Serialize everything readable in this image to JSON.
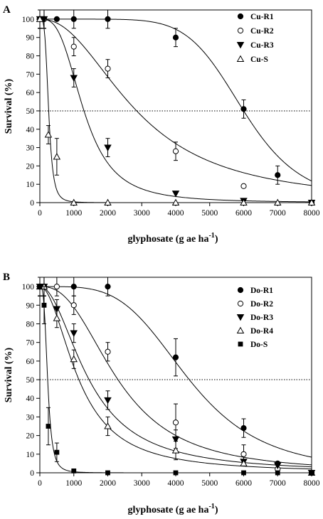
{
  "chart_data": [
    {
      "type": "scatter",
      "panel_label": "A",
      "xlabel": "glyphosate (g ae ha",
      "xlabel_sup": "-1",
      "ylabel": "Survival (%)",
      "xlim": [
        0,
        8000
      ],
      "ylim": [
        0,
        105
      ],
      "xticks": [
        "0",
        "1000",
        "2000",
        "3000",
        "4000",
        "5000",
        "6000",
        "7000",
        "8000"
      ],
      "yticks": [
        "0",
        "10",
        "20",
        "30",
        "40",
        "50",
        "60",
        "70",
        "80",
        "90",
        "100"
      ],
      "reference_line_y": 50,
      "legend_position": "top-right",
      "grid": false,
      "series": [
        {
          "name": "Cu-R1",
          "marker": "circle-filled",
          "ld50": 6000,
          "slope": 7,
          "points": [
            {
              "x": 0,
              "y": 100,
              "err": 5
            },
            {
              "x": 125,
              "y": 100,
              "err": 5
            },
            {
              "x": 500,
              "y": 100,
              "err": 0
            },
            {
              "x": 1000,
              "y": 100,
              "err": 5
            },
            {
              "x": 2000,
              "y": 100,
              "err": 5
            },
            {
              "x": 4000,
              "y": 90,
              "err": 5
            },
            {
              "x": 6000,
              "y": 51,
              "err": 5
            },
            {
              "x": 7000,
              "y": 15,
              "err": 5
            },
            {
              "x": 8000,
              "y": 0,
              "err": 0
            }
          ]
        },
        {
          "name": "Cu-R2",
          "marker": "circle-open",
          "ld50": 2850,
          "slope": 2.2,
          "points": [
            {
              "x": 0,
              "y": 100,
              "err": 5
            },
            {
              "x": 125,
              "y": 100,
              "err": 5
            },
            {
              "x": 1000,
              "y": 85,
              "err": 5
            },
            {
              "x": 2000,
              "y": 73,
              "err": 5
            },
            {
              "x": 4000,
              "y": 28,
              "err": 5
            },
            {
              "x": 6000,
              "y": 9,
              "err": 0
            },
            {
              "x": 8000,
              "y": 0,
              "err": 0
            }
          ]
        },
        {
          "name": "Cu-R3",
          "marker": "triangle-down-filled",
          "ld50": 1300,
          "slope": 3,
          "points": [
            {
              "x": 0,
              "y": 100,
              "err": 5
            },
            {
              "x": 125,
              "y": 100,
              "err": 5
            },
            {
              "x": 1000,
              "y": 68,
              "err": 5
            },
            {
              "x": 2000,
              "y": 30,
              "err": 5
            },
            {
              "x": 4000,
              "y": 5,
              "err": 0
            },
            {
              "x": 6000,
              "y": 1,
              "err": 0
            },
            {
              "x": 8000,
              "y": 0,
              "err": 0
            }
          ]
        },
        {
          "name": "Cu-S",
          "marker": "triangle-up-open",
          "ld50": 260,
          "slope": 4,
          "points": [
            {
              "x": 0,
              "y": 100,
              "err": 5
            },
            {
              "x": 250,
              "y": 37,
              "err": 5
            },
            {
              "x": 500,
              "y": 25,
              "err": 10
            },
            {
              "x": 1000,
              "y": 0,
              "err": 0
            },
            {
              "x": 2000,
              "y": 0,
              "err": 0
            },
            {
              "x": 4000,
              "y": 0,
              "err": 0
            },
            {
              "x": 6000,
              "y": 0,
              "err": 0
            },
            {
              "x": 7000,
              "y": 0,
              "err": 0
            },
            {
              "x": 8000,
              "y": 0,
              "err": 0
            }
          ]
        }
      ]
    },
    {
      "type": "scatter",
      "panel_label": "B",
      "xlabel": "glyphosate (g ae ha",
      "xlabel_sup": "-1",
      "ylabel": "Survival (%)",
      "xlim": [
        0,
        8000
      ],
      "ylim": [
        0,
        105
      ],
      "xticks": [
        "0",
        "1000",
        "2000",
        "3000",
        "4000",
        "5000",
        "6000",
        "7000",
        "8000"
      ],
      "yticks": [
        "0",
        "10",
        "20",
        "30",
        "40",
        "50",
        "60",
        "70",
        "80",
        "90",
        "100"
      ],
      "reference_line_y": 50,
      "legend_position": "top-right",
      "grid": false,
      "series": [
        {
          "name": "Do-R1",
          "marker": "circle-filled",
          "ld50": 4400,
          "slope": 4,
          "points": [
            {
              "x": 0,
              "y": 100,
              "err": 5
            },
            {
              "x": 125,
              "y": 100,
              "err": 5
            },
            {
              "x": 1000,
              "y": 100,
              "err": 5
            },
            {
              "x": 2000,
              "y": 100,
              "err": 5
            },
            {
              "x": 4000,
              "y": 62,
              "err": 10
            },
            {
              "x": 6000,
              "y": 24,
              "err": 5
            },
            {
              "x": 7000,
              "y": 5,
              "err": 0
            },
            {
              "x": 8000,
              "y": 0,
              "err": 0
            }
          ]
        },
        {
          "name": "Do-R2",
          "marker": "circle-open",
          "ld50": 2300,
          "slope": 2.5,
          "points": [
            {
              "x": 0,
              "y": 100,
              "err": 5
            },
            {
              "x": 125,
              "y": 100,
              "err": 5
            },
            {
              "x": 500,
              "y": 100,
              "err": 5
            },
            {
              "x": 1000,
              "y": 90,
              "err": 5
            },
            {
              "x": 2000,
              "y": 65,
              "err": 5
            },
            {
              "x": 4000,
              "y": 27,
              "err": 10
            },
            {
              "x": 6000,
              "y": 10,
              "err": 5
            },
            {
              "x": 7000,
              "y": 2,
              "err": 0
            },
            {
              "x": 8000,
              "y": 0,
              "err": 0
            }
          ]
        },
        {
          "name": "Do-R3",
          "marker": "triangle-down-filled",
          "ld50": 1450,
          "slope": 2,
          "points": [
            {
              "x": 0,
              "y": 100,
              "err": 5
            },
            {
              "x": 125,
              "y": 100,
              "err": 5
            },
            {
              "x": 500,
              "y": 88,
              "err": 5
            },
            {
              "x": 1000,
              "y": 75,
              "err": 5
            },
            {
              "x": 2000,
              "y": 39,
              "err": 5
            },
            {
              "x": 4000,
              "y": 18,
              "err": 5
            },
            {
              "x": 6000,
              "y": 6,
              "err": 0
            },
            {
              "x": 7000,
              "y": 4,
              "err": 0
            },
            {
              "x": 8000,
              "y": 0,
              "err": 0
            }
          ]
        },
        {
          "name": "Do-R4",
          "marker": "triangle-up-open",
          "ld50": 1150,
          "slope": 2,
          "points": [
            {
              "x": 0,
              "y": 100,
              "err": 5
            },
            {
              "x": 125,
              "y": 100,
              "err": 5
            },
            {
              "x": 500,
              "y": 83,
              "err": 5
            },
            {
              "x": 1000,
              "y": 61,
              "err": 5
            },
            {
              "x": 2000,
              "y": 25,
              "err": 5
            },
            {
              "x": 4000,
              "y": 12,
              "err": 5
            },
            {
              "x": 6000,
              "y": 5,
              "err": 0
            },
            {
              "x": 8000,
              "y": 0,
              "err": 0
            }
          ]
        },
        {
          "name": "Do-S",
          "marker": "square-filled",
          "ld50": 230,
          "slope": 3.5,
          "points": [
            {
              "x": 0,
              "y": 100,
              "err": 5
            },
            {
              "x": 125,
              "y": 90,
              "err": 10
            },
            {
              "x": 250,
              "y": 25,
              "err": 10
            },
            {
              "x": 500,
              "y": 11,
              "err": 5
            },
            {
              "x": 1000,
              "y": 1,
              "err": 0
            },
            {
              "x": 2000,
              "y": 0,
              "err": 0
            },
            {
              "x": 4000,
              "y": 0,
              "err": 0
            },
            {
              "x": 6000,
              "y": 0,
              "err": 0
            },
            {
              "x": 7000,
              "y": 0,
              "err": 0
            },
            {
              "x": 8000,
              "y": 0,
              "err": 0
            }
          ]
        }
      ]
    }
  ]
}
